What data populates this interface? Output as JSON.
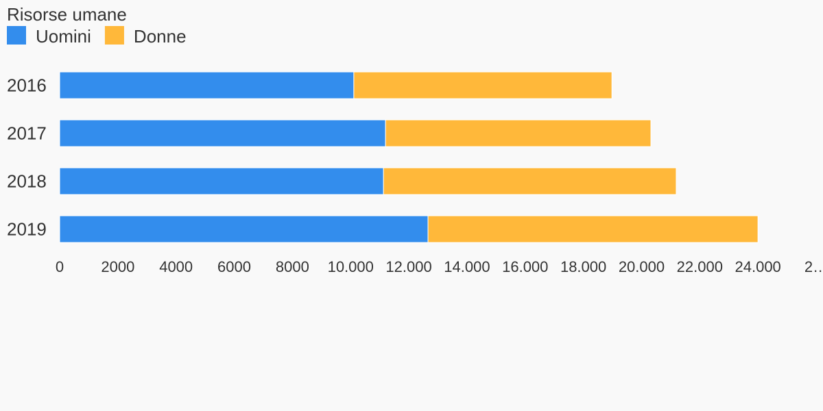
{
  "chart_data": {
    "type": "stacked_barh",
    "title": "Risorse umane",
    "categories": [
      "2016",
      "2017",
      "2018",
      "2019"
    ],
    "series": [
      {
        "name": "Uomini",
        "color": "#338ded",
        "values": [
          10110,
          11200,
          11130,
          12660
        ]
      },
      {
        "name": "Donne",
        "color": "#ffb83a",
        "values": [
          8870,
          9120,
          10060,
          11340
        ]
      }
    ],
    "xlim": [
      0,
      26000
    ],
    "xticks": [
      0,
      2000,
      4000,
      6000,
      8000,
      {
        "value": 10000,
        "label": "10.000"
      },
      {
        "value": 12000,
        "label": "12.000"
      },
      {
        "value": 14000,
        "label": "14.000"
      },
      {
        "value": 16000,
        "label": "16.000"
      },
      {
        "value": 18000,
        "label": "18.000"
      },
      {
        "value": 20000,
        "label": "20.000"
      },
      {
        "value": 22000,
        "label": "22.000"
      },
      {
        "value": 24000,
        "label": "24.000"
      },
      {
        "value": 26000,
        "label": "2…"
      }
    ],
    "legend": "top-left",
    "grid": false
  }
}
